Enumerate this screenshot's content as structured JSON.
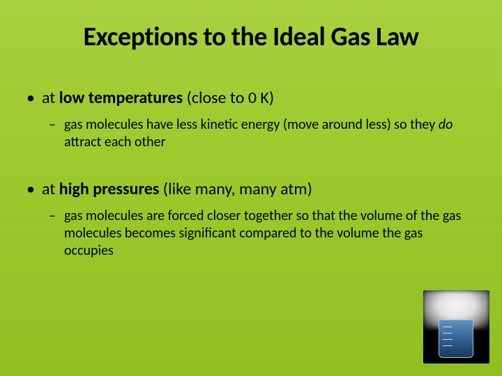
{
  "slide": {
    "title": "Exceptions to the Ideal Gas Law",
    "bullets": [
      {
        "main_prefix": "at ",
        "main_bold": "low temperatures",
        "main_suffix": " (close to 0 K)",
        "sub_prefix": "gas molecules have less kinetic energy (move around less) so they ",
        "sub_italic": "do",
        "sub_suffix": " attract each other"
      },
      {
        "main_prefix": "at ",
        "main_bold": "high pressures",
        "main_suffix": " (like many, many atm)",
        "sub_prefix": "gas molecules are forced closer together so that the volume of the gas molecules becomes significant compared to the volume the gas occupies",
        "sub_italic": "",
        "sub_suffix": ""
      }
    ],
    "background_gradient": [
      "#a8d040",
      "#9ecb2e",
      "#8fc020"
    ],
    "title_fontsize": 38,
    "bullet_main_fontsize": 24,
    "bullet_sub_fontsize": 20,
    "text_color": "#000000",
    "image": {
      "description": "beaker-with-dry-ice-smoke",
      "position": "bottom-right",
      "width": 95,
      "height": 105
    }
  }
}
